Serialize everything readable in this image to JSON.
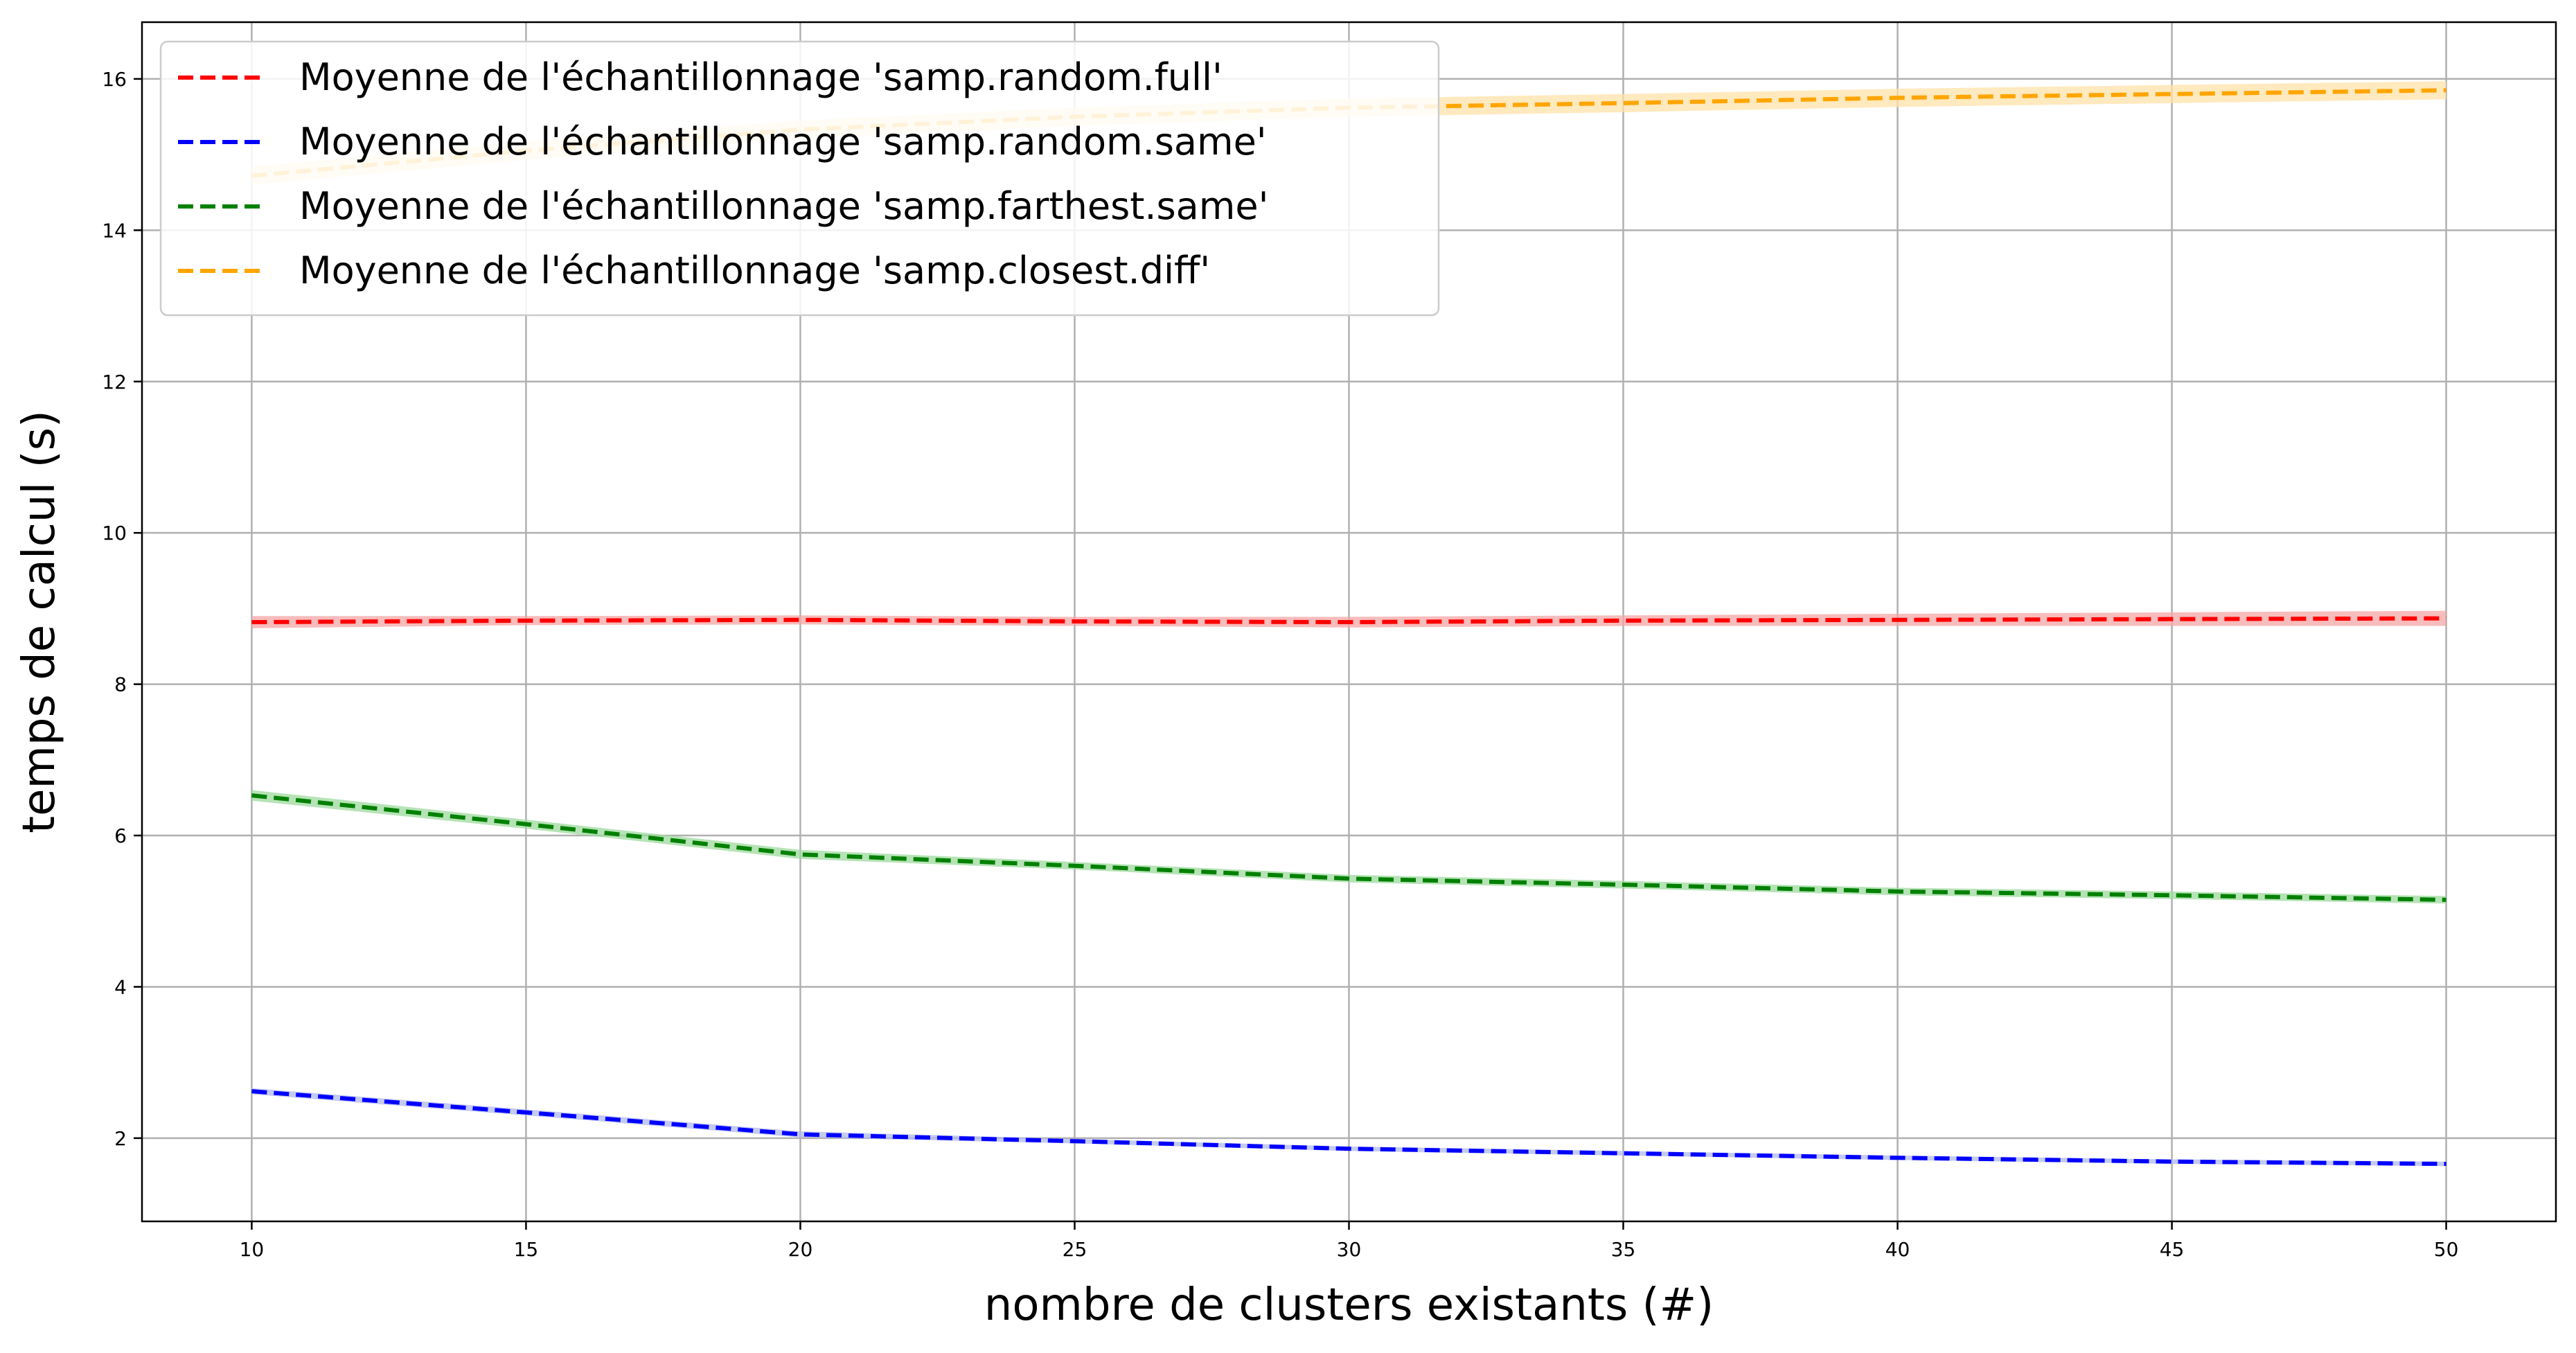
{
  "chart_data": {
    "type": "line",
    "title": "",
    "xlabel": "nombre de clusters existants (#)",
    "ylabel": "temps de calcul (s)",
    "xlim": [
      8,
      52
    ],
    "ylim": [
      0.9,
      16.75
    ],
    "xticks": [
      10,
      15,
      20,
      25,
      30,
      35,
      40,
      45,
      50
    ],
    "yticks": [
      2,
      4,
      6,
      8,
      10,
      12,
      14,
      16
    ],
    "grid": true,
    "legend_position": "top-left",
    "x": [
      10,
      15,
      20,
      25,
      30,
      35,
      40,
      45,
      50
    ],
    "series": [
      {
        "name": "Moyenne de l'échantillonnage 'samp.random.full'",
        "color": "#ff0000",
        "band_color": "#f4a5a5",
        "values": [
          8.82,
          8.84,
          8.85,
          8.83,
          8.82,
          8.84,
          8.85,
          8.86,
          8.87
        ],
        "band": [
          0.08,
          0.06,
          0.06,
          0.06,
          0.07,
          0.07,
          0.08,
          0.09,
          0.1
        ]
      },
      {
        "name": "Moyenne de l'échantillonnage 'samp.random.same'",
        "color": "#0000ff",
        "band_color": "#b0b8f0",
        "values": [
          2.62,
          2.34,
          2.05,
          1.96,
          1.86,
          1.8,
          1.74,
          1.69,
          1.66
        ],
        "band": [
          0.04,
          0.04,
          0.04,
          0.03,
          0.03,
          0.03,
          0.03,
          0.03,
          0.03
        ]
      },
      {
        "name": "Moyenne de l'échantillonnage 'samp.farthest.same'",
        "color": "#008000",
        "band_color": "#9ed99e",
        "values": [
          6.53,
          6.15,
          5.75,
          5.6,
          5.43,
          5.35,
          5.26,
          5.21,
          5.15
        ],
        "band": [
          0.07,
          0.06,
          0.06,
          0.05,
          0.05,
          0.05,
          0.05,
          0.05,
          0.05
        ]
      },
      {
        "name": "Moyenne de l'échantillonnage 'samp.closest.diff'",
        "color": "#ffa500",
        "band_color": "#ffe2a8",
        "values": [
          14.72,
          15.05,
          15.33,
          15.5,
          15.62,
          15.68,
          15.75,
          15.8,
          15.85
        ],
        "band": [
          0.12,
          0.12,
          0.12,
          0.12,
          0.12,
          0.12,
          0.12,
          0.12,
          0.12
        ]
      }
    ]
  }
}
